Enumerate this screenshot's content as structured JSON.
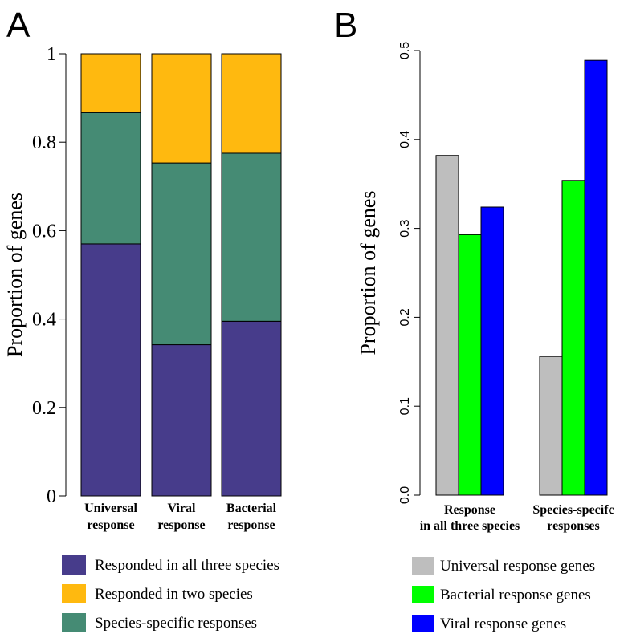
{
  "panels": {
    "a_label": "A",
    "b_label": "B"
  },
  "chart_data": [
    {
      "type": "bar",
      "stacked": true,
      "panel": "A",
      "ylabel": "Proportion of genes",
      "ylim": [
        0,
        1
      ],
      "yticks": [
        "0",
        "0.2",
        "0.4",
        "0.6",
        "0.8",
        "1"
      ],
      "categories": [
        [
          "Universal",
          "response"
        ],
        [
          "Viral",
          "response"
        ],
        [
          "Bacterial",
          "response"
        ]
      ],
      "series": [
        {
          "name": "Responded in all three species",
          "color": "#473c8b",
          "values": [
            0.57,
            0.342,
            0.395
          ]
        },
        {
          "name": "Species-specific responses",
          "color": "#458b74",
          "values": [
            0.297,
            0.411,
            0.38
          ]
        },
        {
          "name": "Responded in two species",
          "color": "#ffb90f",
          "values": [
            0.133,
            0.247,
            0.225
          ]
        }
      ],
      "legend_order": [
        0,
        2,
        1
      ],
      "legend": "bottom"
    },
    {
      "type": "bar",
      "panel": "B",
      "ylabel": "Proportion of genes",
      "ylim": [
        0,
        0.5
      ],
      "yticks": [
        "0.0",
        "0.1",
        "0.2",
        "0.3",
        "0.4",
        "0.5"
      ],
      "categories": [
        [
          "Response",
          "in all three species"
        ],
        [
          "Species-specifc",
          "responses"
        ]
      ],
      "series": [
        {
          "name": "Universal response genes",
          "color": "#bebebe",
          "values": [
            0.382,
            0.156
          ]
        },
        {
          "name": "Bacterial response genes",
          "color": "#00ff00",
          "values": [
            0.293,
            0.354
          ]
        },
        {
          "name": "Viral response genes",
          "color": "#0000ff",
          "values": [
            0.324,
            0.489
          ]
        }
      ],
      "legend": "bottom"
    }
  ]
}
